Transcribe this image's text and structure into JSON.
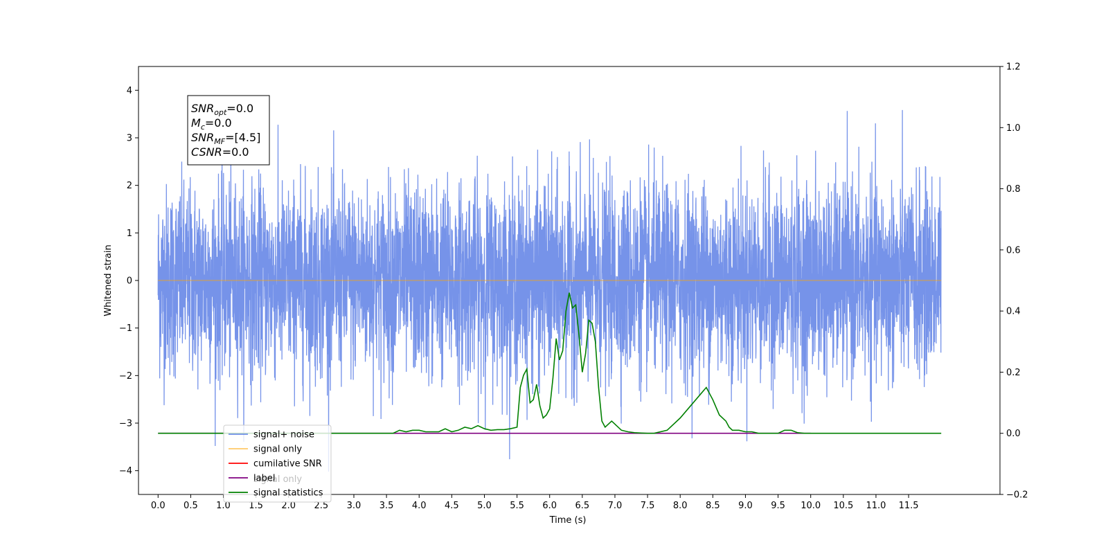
{
  "chart_data": {
    "type": "line",
    "xlabel": "Time (s)",
    "ylabel": "Whitened strain",
    "xlim": [
      -0.3,
      12.9
    ],
    "ylim": [
      -4.5,
      4.5
    ],
    "y2lim": [
      -0.2,
      1.2
    ],
    "x_ticks": [
      "0.0",
      "0.5",
      "1.0",
      "1.5",
      "2.0",
      "2.5",
      "3.0",
      "3.5",
      "4.0",
      "4.5",
      "5.0",
      "5.5",
      "6.0",
      "6.5",
      "7.0",
      "7.5",
      "8.0",
      "8.5",
      "9.0",
      "9.5",
      "10.0",
      "10.5",
      "11.0",
      "11.5"
    ],
    "y_ticks": [
      "4",
      "3",
      "2",
      "1",
      "0",
      "−1",
      "−2",
      "−3",
      "−4"
    ],
    "y_ticks_values": [
      4,
      3,
      2,
      1,
      0,
      -1,
      -2,
      -3,
      -4
    ],
    "y2_ticks": [
      "1.2",
      "1.0",
      "0.8",
      "0.6",
      "0.4",
      "0.2",
      "0.0",
      "−0.2"
    ],
    "y2_ticks_values": [
      1.2,
      1.0,
      0.8,
      0.6,
      0.4,
      0.2,
      0.0,
      -0.2
    ],
    "grid": false,
    "legend_position": "lower-left",
    "legend": [
      {
        "label": "signal+ noise",
        "color": "#4169e1"
      },
      {
        "label": "signal only",
        "color": "#ffa500"
      },
      {
        "label": "cumilative SNR",
        "color": "#ff0000"
      },
      {
        "label": "label",
        "color": "#800080"
      },
      {
        "label": "signal statistics",
        "color": "#008000"
      }
    ],
    "hidden_legend_text": "signal only",
    "info_box": {
      "lines": [
        {
          "sym": "SNR",
          "sub": "opt",
          "value": "=0.0"
        },
        {
          "sym": "M",
          "sub": "c",
          "value": "=0.0"
        },
        {
          "sym": "SNR",
          "sub": "MF",
          "value": "=[4.5]"
        },
        {
          "sym": "CSNR",
          "sub": "",
          "value": "=0.0"
        }
      ]
    },
    "series": [
      {
        "name": "signal+ noise",
        "color": "#4169e1",
        "x_range": [
          0.0,
          12.0
        ],
        "sigma": 1.0,
        "samples": 4800,
        "axis": "left"
      },
      {
        "name": "signal only",
        "color": "#ffa500",
        "x": [
          0.0,
          12.0
        ],
        "y": [
          0.0,
          0.0
        ],
        "axis": "left"
      },
      {
        "name": "label",
        "color": "#800080",
        "x": [
          0.0,
          10.0
        ],
        "y": [
          0.0,
          0.0
        ],
        "axis": "right"
      },
      {
        "name": "signal statistics",
        "color": "#008000",
        "axis": "right",
        "x": [
          0.0,
          3.0,
          3.3,
          3.6,
          3.7,
          3.8,
          3.9,
          4.0,
          4.1,
          4.2,
          4.3,
          4.4,
          4.5,
          4.6,
          4.7,
          4.8,
          4.9,
          5.0,
          5.1,
          5.2,
          5.3,
          5.4,
          5.5,
          5.55,
          5.6,
          5.65,
          5.7,
          5.75,
          5.8,
          5.85,
          5.9,
          5.95,
          6.0,
          6.05,
          6.1,
          6.15,
          6.2,
          6.25,
          6.3,
          6.35,
          6.4,
          6.45,
          6.5,
          6.55,
          6.6,
          6.65,
          6.7,
          6.75,
          6.8,
          6.85,
          6.9,
          6.95,
          7.0,
          7.1,
          7.2,
          7.3,
          7.4,
          7.5,
          7.6,
          7.8,
          8.0,
          8.2,
          8.4,
          8.5,
          8.6,
          8.7,
          8.75,
          8.8,
          8.9,
          9.0,
          9.1,
          9.2,
          9.3,
          9.5,
          9.6,
          9.7,
          9.8,
          9.9,
          10.0,
          12.0
        ],
        "y": [
          0.0,
          0.0,
          0.0,
          0.0,
          0.01,
          0.005,
          0.01,
          0.01,
          0.005,
          0.005,
          0.005,
          0.015,
          0.005,
          0.01,
          0.02,
          0.015,
          0.025,
          0.015,
          0.01,
          0.012,
          0.012,
          0.015,
          0.02,
          0.15,
          0.19,
          0.21,
          0.1,
          0.11,
          0.16,
          0.09,
          0.05,
          0.06,
          0.08,
          0.18,
          0.31,
          0.24,
          0.27,
          0.4,
          0.46,
          0.41,
          0.42,
          0.32,
          0.2,
          0.26,
          0.37,
          0.36,
          0.3,
          0.15,
          0.04,
          0.02,
          0.03,
          0.04,
          0.03,
          0.01,
          0.005,
          0.002,
          0.001,
          0.0,
          0.0,
          0.01,
          0.05,
          0.1,
          0.15,
          0.11,
          0.06,
          0.04,
          0.02,
          0.01,
          0.01,
          0.005,
          0.005,
          0.0,
          0.0,
          0.0,
          0.01,
          0.01,
          0.002,
          0.0,
          0.0,
          0.0
        ]
      }
    ]
  }
}
